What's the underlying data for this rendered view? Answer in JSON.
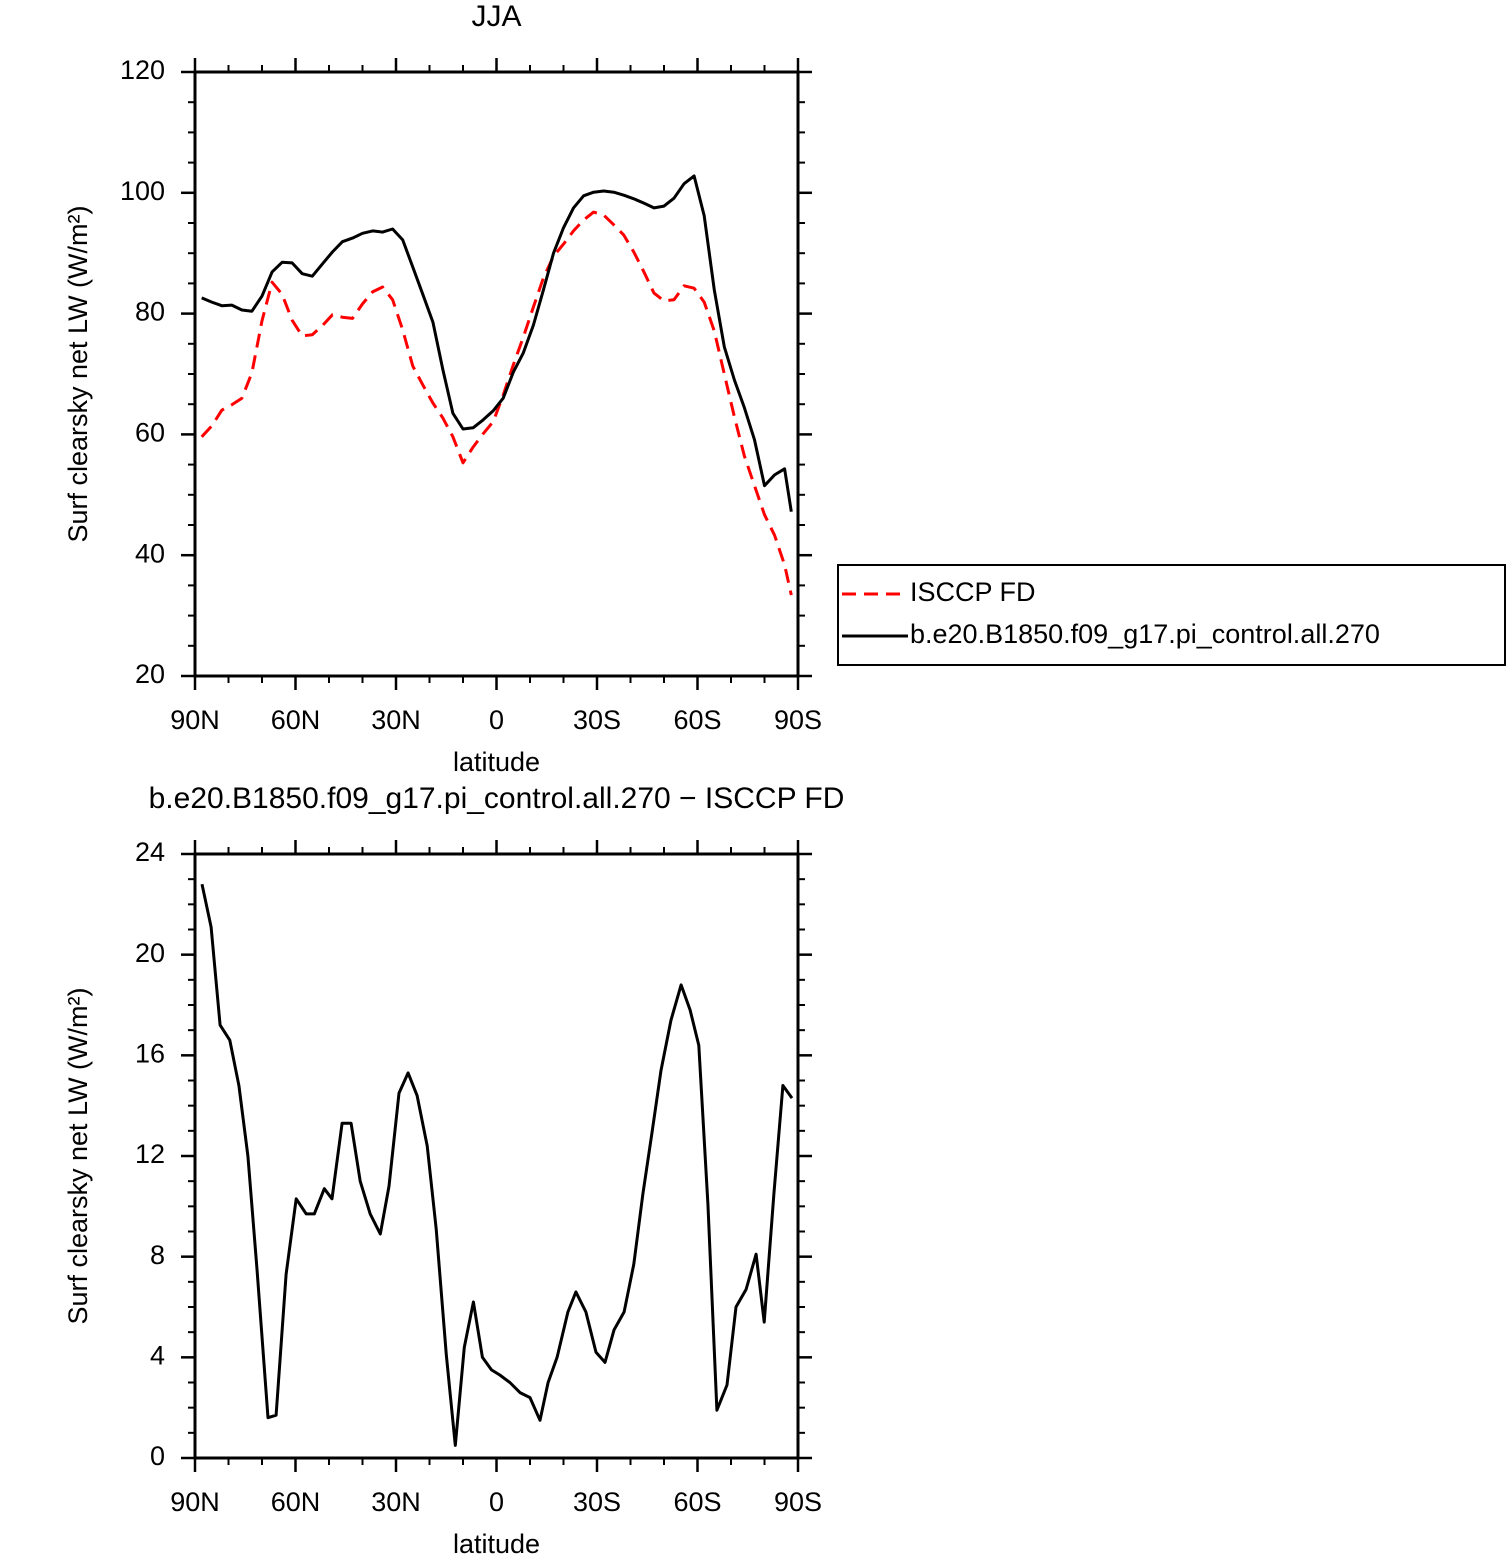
{
  "chart_data": [
    {
      "type": "line",
      "title": "JJA",
      "xlabel": "latitude",
      "ylabel": "Surf clearsky net LW (W/m²)",
      "xlim": [
        90,
        -90
      ],
      "xticks": [
        {
          "value": 90,
          "label": "90N"
        },
        {
          "value": 60,
          "label": "60N"
        },
        {
          "value": 30,
          "label": "30N"
        },
        0,
        {
          "value": -30,
          "label": "30S"
        },
        {
          "value": -60,
          "label": "60S"
        },
        {
          "value": -90,
          "label": "90S"
        }
      ],
      "ylim": [
        20,
        120
      ],
      "yticks": [
        20,
        40,
        60,
        80,
        100,
        120
      ],
      "legend": "right",
      "x": [
        88,
        85,
        82,
        79,
        76,
        73,
        70,
        67,
        64,
        61,
        58,
        55,
        52,
        49,
        46,
        43,
        40,
        37,
        34,
        31,
        28,
        25,
        22,
        19,
        16,
        13,
        10,
        7,
        4,
        1,
        -2,
        -5,
        -8,
        -11,
        -14,
        -17,
        -20,
        -23,
        -26,
        -29,
        -32,
        -35,
        -38,
        -41,
        -44,
        -47,
        -50,
        -53,
        -56,
        -59,
        -62,
        -65,
        -68,
        -71,
        -74,
        -77,
        -80,
        -83,
        -86,
        -88
      ],
      "series": [
        {
          "name": "ISCCP FD",
          "color": "#ff0000",
          "linestyle": "dashed",
          "values": [
            59.6,
            61.4,
            64.0,
            64.9,
            66.0,
            70.2,
            78.8,
            85.2,
            83.2,
            78.9,
            76.3,
            76.5,
            78.0,
            79.8,
            79.4,
            79.2,
            81.6,
            83.6,
            84.4,
            82.3,
            77.3,
            71.3,
            68.2,
            65.2,
            62.7,
            59.6,
            55.3,
            57.9,
            60.1,
            62.1,
            66.5,
            71.5,
            76.1,
            81.1,
            85.9,
            89.5,
            91.5,
            93.7,
            95.5,
            96.8,
            96.3,
            94.7,
            93.0,
            90.2,
            86.9,
            83.4,
            82.1,
            82.3,
            84.6,
            84.2,
            81.9,
            77.1,
            70.0,
            62.9,
            56.4,
            51.5,
            46.7,
            43.3,
            38.4,
            33.4
          ]
        },
        {
          "name": "b.e20.B1850.f09_g17.pi_control.all.270",
          "color": "#000000",
          "linestyle": "solid",
          "values": [
            82.6,
            81.9,
            81.3,
            81.4,
            80.6,
            80.4,
            82.9,
            86.9,
            88.5,
            88.4,
            86.6,
            86.2,
            88.2,
            90.2,
            91.9,
            92.5,
            93.3,
            93.7,
            93.5,
            94.0,
            92.2,
            87.7,
            83.2,
            78.6,
            70.7,
            63.5,
            60.9,
            61.1,
            62.4,
            63.9,
            66.0,
            70.3,
            73.5,
            78.1,
            83.9,
            90.0,
            94.2,
            97.5,
            99.5,
            100.1,
            100.3,
            100.1,
            99.6,
            99.0,
            98.3,
            97.5,
            97.8,
            99.1,
            101.5,
            102.8,
            96.2,
            83.9,
            74.5,
            69.0,
            64.4,
            59.1,
            51.5,
            53.3,
            54.3,
            47.2
          ]
        }
      ]
    },
    {
      "type": "line",
      "title": "b.e20.B1850.f09_g17.pi_control.all.270 − ISCCP FD",
      "xlabel": "latitude",
      "ylabel": "Surf clearsky net LW (W/m²)",
      "xlim": [
        90,
        -90
      ],
      "xticks": [
        {
          "value": 90,
          "label": "90N"
        },
        {
          "value": 60,
          "label": "60N"
        },
        {
          "value": 30,
          "label": "30N"
        },
        0,
        {
          "value": -30,
          "label": "30S"
        },
        {
          "value": -60,
          "label": "60S"
        },
        {
          "value": -90,
          "label": "90S"
        }
      ],
      "ylim": [
        0,
        24
      ],
      "yticks": [
        0,
        4,
        8,
        12,
        16,
        20,
        24
      ],
      "x": [
        87.9,
        85.2,
        82.5,
        79.6,
        76.9,
        74.2,
        71.5,
        68.2,
        65.8,
        62.8,
        59.8,
        56.8,
        54.4,
        51.4,
        49.1,
        46.1,
        43.4,
        40.7,
        37.7,
        34.7,
        32.1,
        29.1,
        26.4,
        23.7,
        20.7,
        18.0,
        15.0,
        12.3,
        9.6,
        6.9,
        4.2,
        1.5,
        -1.0,
        -4.0,
        -7.0,
        -10.0,
        -13.0,
        -15.4,
        -18.1,
        -21.3,
        -23.7,
        -26.7,
        -29.7,
        -32.4,
        -35.1,
        -38.1,
        -41.0,
        -43.7,
        -46.4,
        -49.1,
        -52.1,
        -55.1,
        -57.8,
        -60.4,
        -63.1,
        -65.8,
        -68.8,
        -71.5,
        -74.5,
        -77.5,
        -79.9,
        -82.8,
        -85.5,
        -88.2
      ],
      "series": [
        {
          "color": "#000000",
          "linestyle": "solid",
          "values": [
            22.8,
            21.1,
            17.2,
            16.6,
            14.8,
            12.0,
            7.5,
            1.6,
            1.7,
            7.3,
            10.3,
            9.7,
            9.7,
            10.7,
            10.3,
            13.3,
            13.3,
            11.0,
            9.7,
            8.9,
            10.8,
            14.5,
            15.3,
            14.4,
            12.4,
            9.1,
            4.1,
            0.5,
            4.4,
            6.2,
            4.0,
            3.5,
            3.3,
            3.0,
            2.6,
            2.4,
            1.5,
            3.0,
            4.0,
            5.8,
            6.6,
            5.8,
            4.2,
            3.8,
            5.1,
            5.8,
            7.7,
            10.5,
            12.9,
            15.4,
            17.4,
            18.8,
            17.8,
            16.4,
            10.1,
            1.9,
            2.9,
            6.0,
            6.7,
            8.1,
            5.4,
            10.5,
            14.8,
            14.3
          ]
        }
      ]
    }
  ]
}
